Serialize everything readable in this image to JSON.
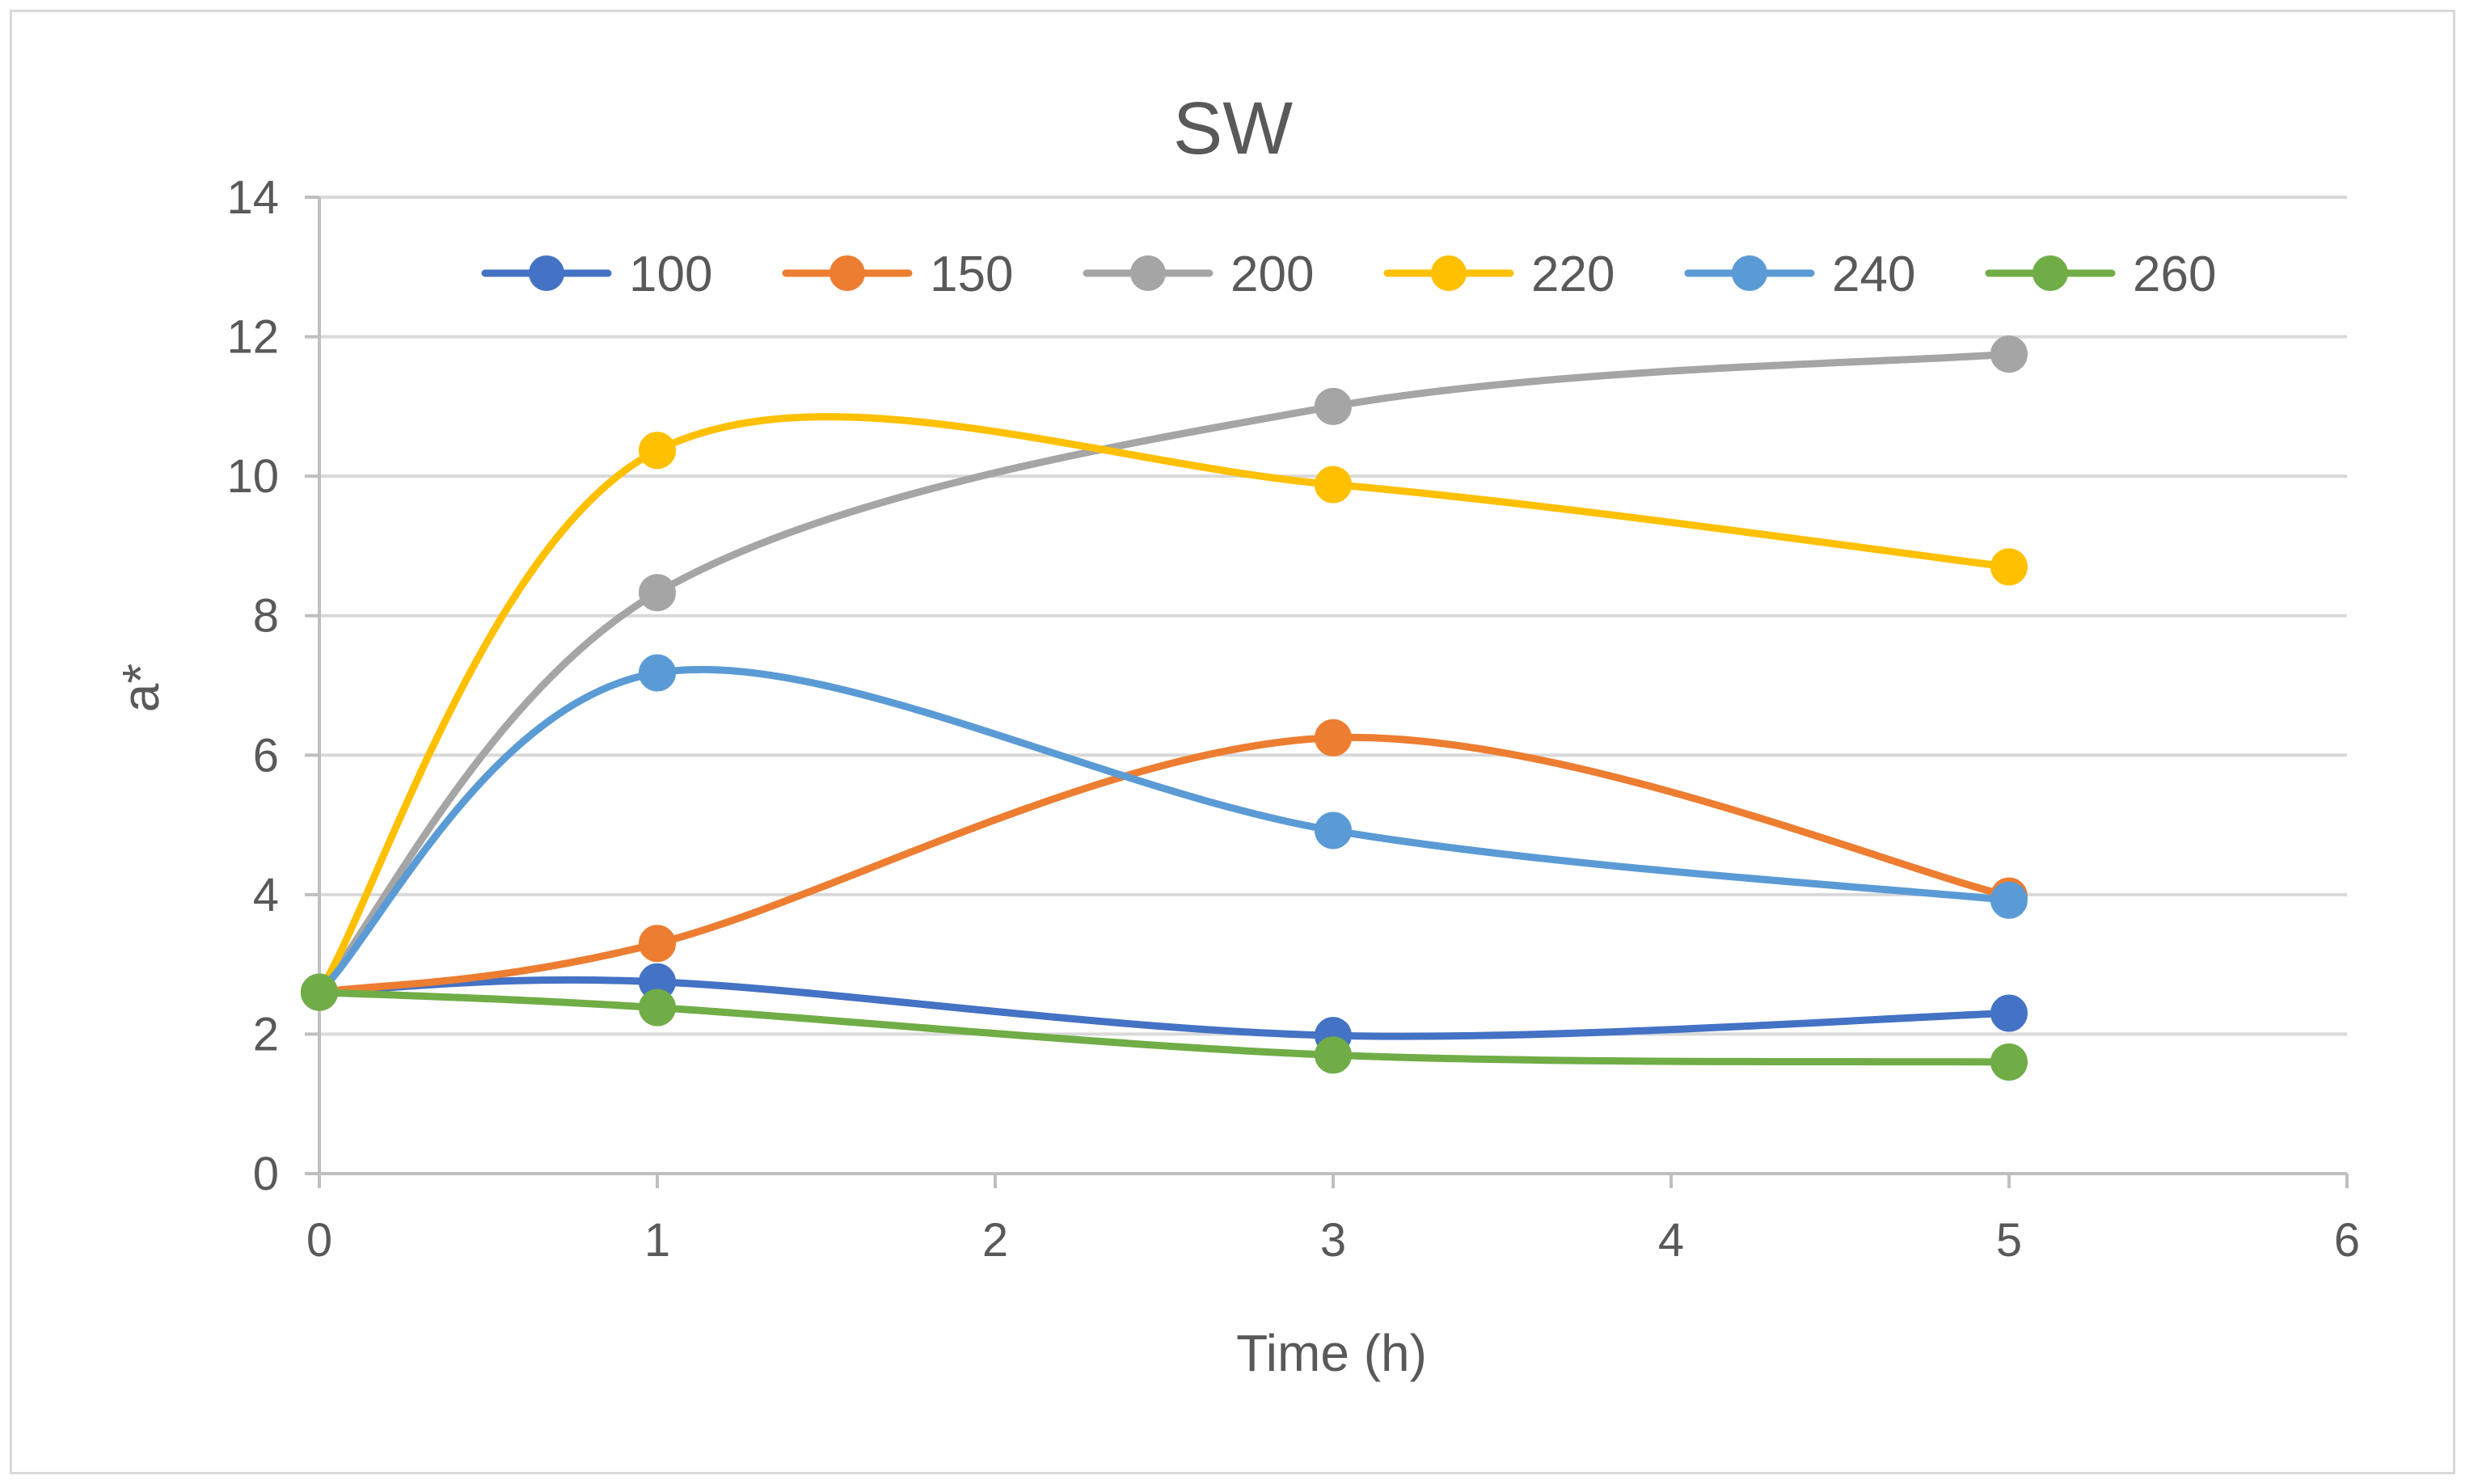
{
  "chart_data": {
    "type": "line",
    "smoothed": true,
    "title": "SW",
    "xlabel": "Time (h)",
    "ylabel": "a*",
    "xlim": [
      0,
      6
    ],
    "ylim": [
      0,
      14
    ],
    "x_ticks": [
      "0",
      "1",
      "2",
      "3",
      "4",
      "5",
      "6"
    ],
    "y_ticks": [
      "0",
      "2",
      "4",
      "6",
      "8",
      "10",
      "12",
      "14"
    ],
    "grid": "horizontal",
    "legend_position": "top",
    "x": [
      0,
      1,
      3,
      5
    ],
    "series": [
      {
        "name": "100",
        "color": "#4472c4",
        "values": [
          2.6,
          2.75,
          1.98,
          2.3
        ]
      },
      {
        "name": "150",
        "color": "#ed7d31",
        "values": [
          2.6,
          3.3,
          6.25,
          3.98
        ]
      },
      {
        "name": "200",
        "color": "#a5a5a5",
        "values": [
          2.6,
          8.33,
          11.0,
          11.75
        ]
      },
      {
        "name": "220",
        "color": "#ffc000",
        "values": [
          2.6,
          10.37,
          9.88,
          8.7
        ]
      },
      {
        "name": "240",
        "color": "#5b9bd5",
        "values": [
          2.6,
          7.18,
          4.92,
          3.92
        ]
      },
      {
        "name": "260",
        "color": "#70ad47",
        "values": [
          2.6,
          2.38,
          1.7,
          1.6
        ]
      }
    ]
  }
}
